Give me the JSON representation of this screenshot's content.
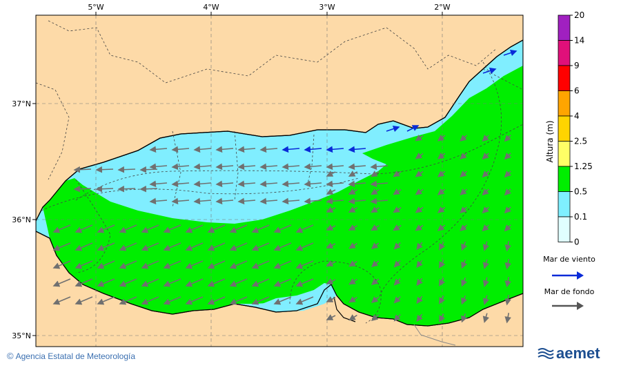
{
  "map": {
    "lon_labels": [
      "5°W",
      "4°W",
      "3°W",
      "2°W"
    ],
    "lat_labels": [
      "37°N",
      "36°N",
      "35°N"
    ]
  },
  "colorbar": {
    "title": "Altura (m)",
    "ticks": [
      "20",
      "14",
      "9",
      "6",
      "4",
      "2.5",
      "1.25",
      "0.5",
      "0.1",
      "0"
    ],
    "colors": [
      "#a020c0",
      "#e0107a",
      "#ff0000",
      "#ffa500",
      "#ffd400",
      "#ffff66",
      "#00ee00",
      "#7ff0ff",
      "#e0ffff"
    ]
  },
  "legend": {
    "wind_sea_label": "Mar de viento",
    "wind_sea_color": "#0a2bd8",
    "swell_label": "Mar de fondo",
    "swell_color": "#555555"
  },
  "footer": {
    "agency": "Agencia Estatal de Meteorología",
    "copyright_symbol": "©"
  },
  "logo": {
    "text": "aemet"
  },
  "colors": {
    "land": "#fddaa8",
    "calm": "#80eeff",
    "moderate": "#00ee00"
  }
}
